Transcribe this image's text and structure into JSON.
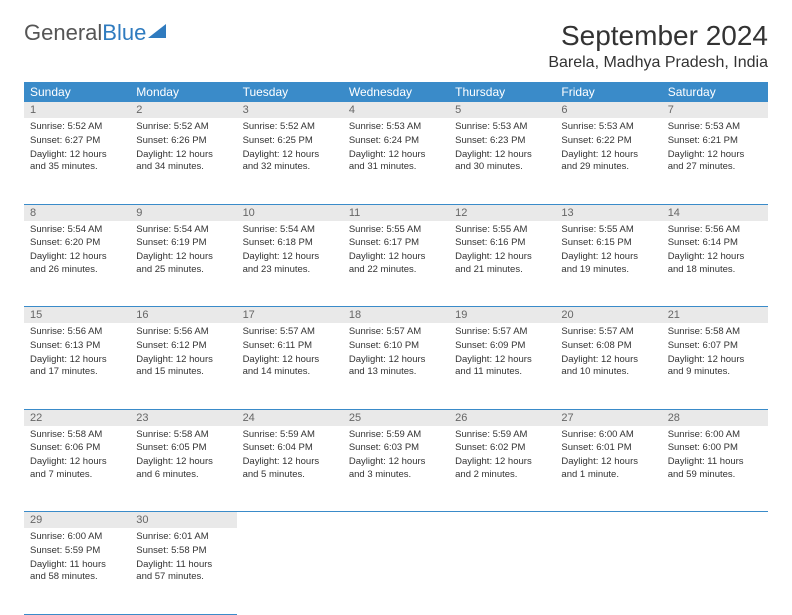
{
  "brand": {
    "part1": "General",
    "part2": "Blue"
  },
  "title": "September 2024",
  "location": "Barela, Madhya Pradesh, India",
  "colors": {
    "header_bg": "#3a8bc9",
    "header_text": "#ffffff",
    "daynum_bg": "#e9e9e9",
    "border": "#3a8bc9",
    "brand_blue": "#2f7bbf"
  },
  "weekdays": [
    "Sunday",
    "Monday",
    "Tuesday",
    "Wednesday",
    "Thursday",
    "Friday",
    "Saturday"
  ],
  "weeks": [
    [
      {
        "n": "1",
        "sr": "5:52 AM",
        "ss": "6:27 PM",
        "h": 12,
        "m": 35
      },
      {
        "n": "2",
        "sr": "5:52 AM",
        "ss": "6:26 PM",
        "h": 12,
        "m": 34
      },
      {
        "n": "3",
        "sr": "5:52 AM",
        "ss": "6:25 PM",
        "h": 12,
        "m": 32
      },
      {
        "n": "4",
        "sr": "5:53 AM",
        "ss": "6:24 PM",
        "h": 12,
        "m": 31
      },
      {
        "n": "5",
        "sr": "5:53 AM",
        "ss": "6:23 PM",
        "h": 12,
        "m": 30
      },
      {
        "n": "6",
        "sr": "5:53 AM",
        "ss": "6:22 PM",
        "h": 12,
        "m": 29
      },
      {
        "n": "7",
        "sr": "5:53 AM",
        "ss": "6:21 PM",
        "h": 12,
        "m": 27
      }
    ],
    [
      {
        "n": "8",
        "sr": "5:54 AM",
        "ss": "6:20 PM",
        "h": 12,
        "m": 26
      },
      {
        "n": "9",
        "sr": "5:54 AM",
        "ss": "6:19 PM",
        "h": 12,
        "m": 25
      },
      {
        "n": "10",
        "sr": "5:54 AM",
        "ss": "6:18 PM",
        "h": 12,
        "m": 23
      },
      {
        "n": "11",
        "sr": "5:55 AM",
        "ss": "6:17 PM",
        "h": 12,
        "m": 22
      },
      {
        "n": "12",
        "sr": "5:55 AM",
        "ss": "6:16 PM",
        "h": 12,
        "m": 21
      },
      {
        "n": "13",
        "sr": "5:55 AM",
        "ss": "6:15 PM",
        "h": 12,
        "m": 19
      },
      {
        "n": "14",
        "sr": "5:56 AM",
        "ss": "6:14 PM",
        "h": 12,
        "m": 18
      }
    ],
    [
      {
        "n": "15",
        "sr": "5:56 AM",
        "ss": "6:13 PM",
        "h": 12,
        "m": 17
      },
      {
        "n": "16",
        "sr": "5:56 AM",
        "ss": "6:12 PM",
        "h": 12,
        "m": 15
      },
      {
        "n": "17",
        "sr": "5:57 AM",
        "ss": "6:11 PM",
        "h": 12,
        "m": 14
      },
      {
        "n": "18",
        "sr": "5:57 AM",
        "ss": "6:10 PM",
        "h": 12,
        "m": 13
      },
      {
        "n": "19",
        "sr": "5:57 AM",
        "ss": "6:09 PM",
        "h": 12,
        "m": 11
      },
      {
        "n": "20",
        "sr": "5:57 AM",
        "ss": "6:08 PM",
        "h": 12,
        "m": 10
      },
      {
        "n": "21",
        "sr": "5:58 AM",
        "ss": "6:07 PM",
        "h": 12,
        "m": 9
      }
    ],
    [
      {
        "n": "22",
        "sr": "5:58 AM",
        "ss": "6:06 PM",
        "h": 12,
        "m": 7
      },
      {
        "n": "23",
        "sr": "5:58 AM",
        "ss": "6:05 PM",
        "h": 12,
        "m": 6
      },
      {
        "n": "24",
        "sr": "5:59 AM",
        "ss": "6:04 PM",
        "h": 12,
        "m": 5
      },
      {
        "n": "25",
        "sr": "5:59 AM",
        "ss": "6:03 PM",
        "h": 12,
        "m": 3
      },
      {
        "n": "26",
        "sr": "5:59 AM",
        "ss": "6:02 PM",
        "h": 12,
        "m": 2
      },
      {
        "n": "27",
        "sr": "6:00 AM",
        "ss": "6:01 PM",
        "h": 12,
        "m": 1
      },
      {
        "n": "28",
        "sr": "6:00 AM",
        "ss": "6:00 PM",
        "h": 11,
        "m": 59
      }
    ],
    [
      {
        "n": "29",
        "sr": "6:00 AM",
        "ss": "5:59 PM",
        "h": 11,
        "m": 58
      },
      {
        "n": "30",
        "sr": "6:01 AM",
        "ss": "5:58 PM",
        "h": 11,
        "m": 57
      },
      null,
      null,
      null,
      null,
      null
    ]
  ]
}
